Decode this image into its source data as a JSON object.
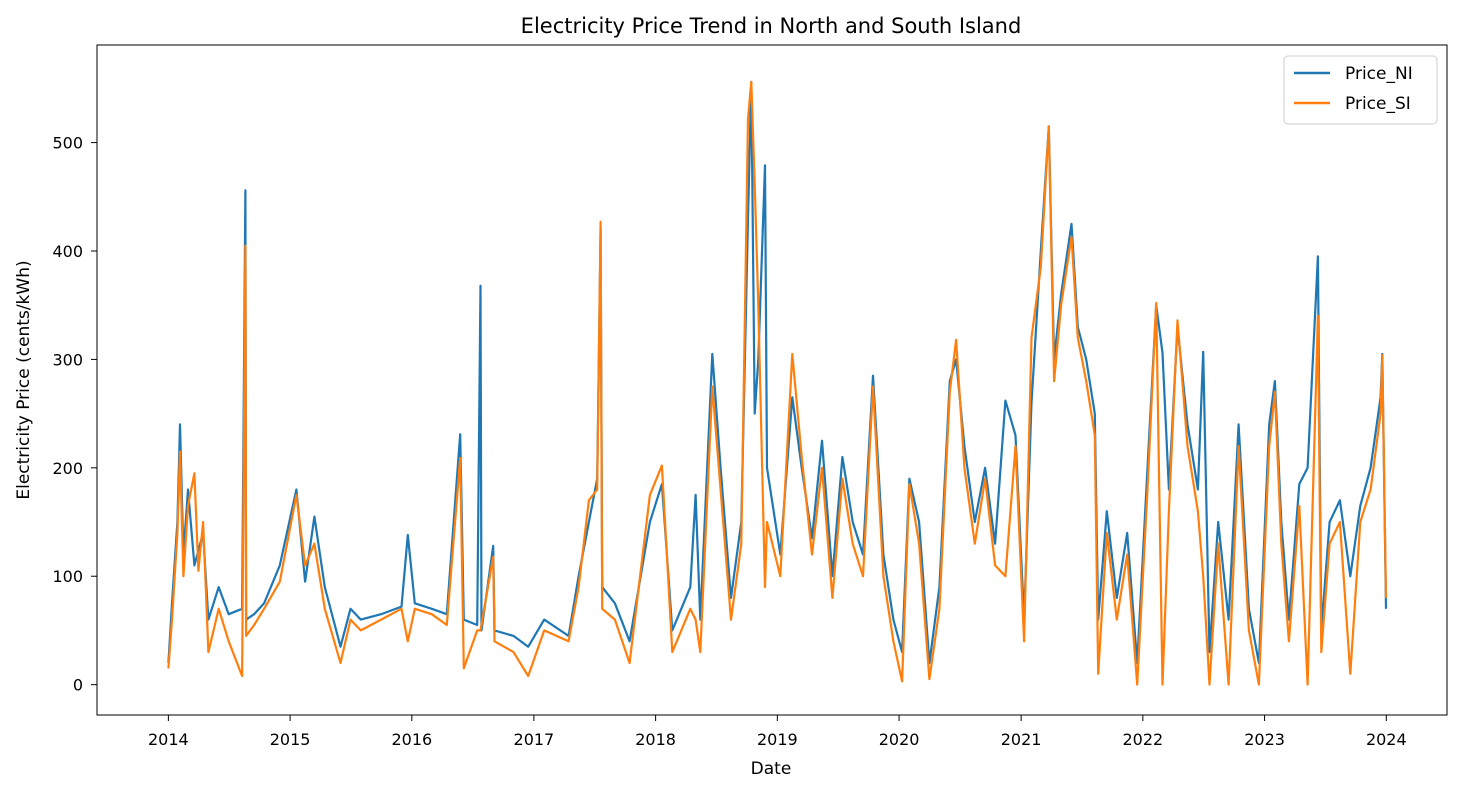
{
  "chart_data": {
    "type": "line",
    "title": "Electricity Price Trend in North and South Island",
    "xlabel": "Date",
    "ylabel": "Electricity Price (cents/kWh)",
    "xlim": [
      "2013-06-01",
      "2024-07-01"
    ],
    "ylim": [
      -28,
      590
    ],
    "x_ticks": [
      "2014",
      "2015",
      "2016",
      "2017",
      "2018",
      "2019",
      "2020",
      "2021",
      "2022",
      "2023",
      "2024"
    ],
    "y_ticks": [
      0,
      100,
      200,
      300,
      400,
      500
    ],
    "legend_position": "top-right",
    "grid": false,
    "series": [
      {
        "name": "Price_NI",
        "color": "#1f77b4",
        "points": [
          [
            "2014-01-01",
            20
          ],
          [
            "2014-01-12",
            75
          ],
          [
            "2014-01-28",
            150
          ],
          [
            "2014-02-05",
            240
          ],
          [
            "2014-02-15",
            120
          ],
          [
            "2014-03-01",
            180
          ],
          [
            "2014-03-20",
            110
          ],
          [
            "2014-04-15",
            140
          ],
          [
            "2014-05-01",
            60
          ],
          [
            "2014-06-01",
            90
          ],
          [
            "2014-07-01",
            65
          ],
          [
            "2014-08-10",
            70
          ],
          [
            "2014-08-20",
            456
          ],
          [
            "2014-08-22",
            60
          ],
          [
            "2014-09-15",
            65
          ],
          [
            "2014-10-15",
            75
          ],
          [
            "2014-12-01",
            110
          ],
          [
            "2015-01-20",
            180
          ],
          [
            "2015-02-15",
            95
          ],
          [
            "2015-03-15",
            155
          ],
          [
            "2015-04-15",
            90
          ],
          [
            "2015-06-01",
            35
          ],
          [
            "2015-07-01",
            70
          ],
          [
            "2015-08-01",
            60
          ],
          [
            "2015-10-01",
            65
          ],
          [
            "2015-12-01",
            72
          ],
          [
            "2015-12-20",
            138
          ],
          [
            "2016-01-10",
            75
          ],
          [
            "2016-03-01",
            70
          ],
          [
            "2016-04-15",
            65
          ],
          [
            "2016-05-25",
            231
          ],
          [
            "2016-06-05",
            60
          ],
          [
            "2016-07-15",
            55
          ],
          [
            "2016-07-25",
            368
          ],
          [
            "2016-07-28",
            50
          ],
          [
            "2016-09-01",
            128
          ],
          [
            "2016-09-05",
            50
          ],
          [
            "2016-11-01",
            45
          ],
          [
            "2016-12-15",
            35
          ],
          [
            "2017-02-01",
            60
          ],
          [
            "2017-04-15",
            45
          ],
          [
            "2017-05-15",
            100
          ],
          [
            "2017-06-15",
            150
          ],
          [
            "2017-07-10",
            190
          ],
          [
            "2017-07-20",
            420
          ],
          [
            "2017-07-25",
            90
          ],
          [
            "2017-09-01",
            75
          ],
          [
            "2017-10-15",
            40
          ],
          [
            "2017-12-15",
            150
          ],
          [
            "2018-01-20",
            185
          ],
          [
            "2018-02-20",
            50
          ],
          [
            "2018-04-15",
            90
          ],
          [
            "2018-05-01",
            175
          ],
          [
            "2018-05-15",
            60
          ],
          [
            "2018-06-20",
            305
          ],
          [
            "2018-07-15",
            200
          ],
          [
            "2018-08-15",
            80
          ],
          [
            "2018-09-15",
            150
          ],
          [
            "2018-10-05",
            430
          ],
          [
            "2018-10-15",
            556
          ],
          [
            "2018-10-25",
            250
          ],
          [
            "2018-11-05",
            300
          ],
          [
            "2018-11-25",
            479
          ],
          [
            "2018-12-01",
            200
          ],
          [
            "2019-01-10",
            120
          ],
          [
            "2019-02-15",
            265
          ],
          [
            "2019-03-15",
            200
          ],
          [
            "2019-04-15",
            135
          ],
          [
            "2019-05-15",
            225
          ],
          [
            "2019-06-15",
            100
          ],
          [
            "2019-07-15",
            210
          ],
          [
            "2019-08-15",
            150
          ],
          [
            "2019-09-15",
            120
          ],
          [
            "2019-10-15",
            285
          ],
          [
            "2019-11-15",
            120
          ],
          [
            "2019-12-15",
            60
          ],
          [
            "2020-01-10",
            30
          ],
          [
            "2020-02-01",
            190
          ],
          [
            "2020-03-01",
            150
          ],
          [
            "2020-04-01",
            20
          ],
          [
            "2020-05-01",
            90
          ],
          [
            "2020-06-01",
            280
          ],
          [
            "2020-06-20",
            300
          ],
          [
            "2020-07-15",
            220
          ],
          [
            "2020-08-15",
            150
          ],
          [
            "2020-09-15",
            200
          ],
          [
            "2020-10-15",
            130
          ],
          [
            "2020-11-15",
            262
          ],
          [
            "2020-12-15",
            230
          ],
          [
            "2021-01-10",
            60
          ],
          [
            "2021-02-01",
            260
          ],
          [
            "2021-03-01",
            400
          ],
          [
            "2021-03-25",
            515
          ],
          [
            "2021-04-10",
            300
          ],
          [
            "2021-05-01",
            360
          ],
          [
            "2021-06-01",
            425
          ],
          [
            "2021-06-20",
            330
          ],
          [
            "2021-07-15",
            300
          ],
          [
            "2021-08-10",
            250
          ],
          [
            "2021-08-20",
            60
          ],
          [
            "2021-09-15",
            160
          ],
          [
            "2021-10-15",
            80
          ],
          [
            "2021-11-15",
            140
          ],
          [
            "2021-12-15",
            20
          ],
          [
            "2022-01-15",
            200
          ],
          [
            "2022-02-10",
            350
          ],
          [
            "2022-03-01",
            306
          ],
          [
            "2022-03-20",
            180
          ],
          [
            "2022-04-15",
            330
          ],
          [
            "2022-05-15",
            240
          ],
          [
            "2022-06-15",
            180
          ],
          [
            "2022-07-01",
            307
          ],
          [
            "2022-07-20",
            30
          ],
          [
            "2022-08-15",
            150
          ],
          [
            "2022-09-15",
            60
          ],
          [
            "2022-10-15",
            240
          ],
          [
            "2022-11-15",
            70
          ],
          [
            "2022-12-15",
            20
          ],
          [
            "2023-01-15",
            240
          ],
          [
            "2023-02-01",
            280
          ],
          [
            "2023-02-20",
            150
          ],
          [
            "2023-03-15",
            60
          ],
          [
            "2023-04-15",
            185
          ],
          [
            "2023-05-10",
            200
          ],
          [
            "2023-06-10",
            395
          ],
          [
            "2023-06-20",
            50
          ],
          [
            "2023-07-15",
            150
          ],
          [
            "2023-08-15",
            170
          ],
          [
            "2023-09-15",
            100
          ],
          [
            "2023-10-15",
            165
          ],
          [
            "2023-11-15",
            200
          ],
          [
            "2023-12-15",
            265
          ],
          [
            "2023-12-20",
            305
          ],
          [
            "2023-12-31",
            70
          ]
        ]
      },
      {
        "name": "Price_SI",
        "color": "#ff7f0e",
        "points": [
          [
            "2014-01-01",
            15
          ],
          [
            "2014-01-12",
            60
          ],
          [
            "2014-01-28",
            140
          ],
          [
            "2014-02-05",
            215
          ],
          [
            "2014-02-15",
            100
          ],
          [
            "2014-03-01",
            165
          ],
          [
            "2014-03-20",
            195
          ],
          [
            "2014-04-01",
            105
          ],
          [
            "2014-04-15",
            150
          ],
          [
            "2014-05-01",
            30
          ],
          [
            "2014-06-01",
            70
          ],
          [
            "2014-07-01",
            40
          ],
          [
            "2014-08-10",
            8
          ],
          [
            "2014-08-20",
            405
          ],
          [
            "2014-08-22",
            45
          ],
          [
            "2014-09-15",
            55
          ],
          [
            "2014-10-15",
            70
          ],
          [
            "2014-12-01",
            95
          ],
          [
            "2015-01-20",
            175
          ],
          [
            "2015-02-15",
            110
          ],
          [
            "2015-03-15",
            130
          ],
          [
            "2015-04-15",
            70
          ],
          [
            "2015-06-01",
            20
          ],
          [
            "2015-07-01",
            60
          ],
          [
            "2015-08-01",
            50
          ],
          [
            "2015-10-01",
            60
          ],
          [
            "2015-12-01",
            70
          ],
          [
            "2015-12-20",
            40
          ],
          [
            "2016-01-10",
            70
          ],
          [
            "2016-03-01",
            65
          ],
          [
            "2016-04-15",
            55
          ],
          [
            "2016-05-25",
            209
          ],
          [
            "2016-06-05",
            15
          ],
          [
            "2016-07-15",
            50
          ],
          [
            "2016-07-25",
            50
          ],
          [
            "2016-09-01",
            118
          ],
          [
            "2016-09-05",
            40
          ],
          [
            "2016-11-01",
            30
          ],
          [
            "2016-12-15",
            8
          ],
          [
            "2017-02-01",
            50
          ],
          [
            "2017-04-15",
            40
          ],
          [
            "2017-05-15",
            90
          ],
          [
            "2017-06-15",
            170
          ],
          [
            "2017-07-10",
            180
          ],
          [
            "2017-07-20",
            427
          ],
          [
            "2017-07-25",
            70
          ],
          [
            "2017-09-01",
            60
          ],
          [
            "2017-10-15",
            20
          ],
          [
            "2017-12-15",
            175
          ],
          [
            "2018-01-20",
            202
          ],
          [
            "2018-02-20",
            30
          ],
          [
            "2018-04-15",
            70
          ],
          [
            "2018-05-01",
            60
          ],
          [
            "2018-05-15",
            30
          ],
          [
            "2018-06-20",
            275
          ],
          [
            "2018-07-15",
            180
          ],
          [
            "2018-08-15",
            60
          ],
          [
            "2018-09-15",
            130
          ],
          [
            "2018-10-05",
            522
          ],
          [
            "2018-10-15",
            556
          ],
          [
            "2018-10-25",
            462
          ],
          [
            "2018-11-05",
            350
          ],
          [
            "2018-11-25",
            90
          ],
          [
            "2018-12-01",
            150
          ],
          [
            "2019-01-10",
            100
          ],
          [
            "2019-02-15",
            305
          ],
          [
            "2019-03-15",
            210
          ],
          [
            "2019-04-15",
            120
          ],
          [
            "2019-05-15",
            200
          ],
          [
            "2019-06-15",
            80
          ],
          [
            "2019-07-15",
            190
          ],
          [
            "2019-08-15",
            130
          ],
          [
            "2019-09-15",
            100
          ],
          [
            "2019-10-15",
            275
          ],
          [
            "2019-11-15",
            100
          ],
          [
            "2019-12-15",
            40
          ],
          [
            "2020-01-10",
            3
          ],
          [
            "2020-02-01",
            185
          ],
          [
            "2020-03-01",
            130
          ],
          [
            "2020-04-01",
            5
          ],
          [
            "2020-05-01",
            70
          ],
          [
            "2020-06-01",
            270
          ],
          [
            "2020-06-20",
            318
          ],
          [
            "2020-07-15",
            200
          ],
          [
            "2020-08-15",
            130
          ],
          [
            "2020-09-15",
            190
          ],
          [
            "2020-10-15",
            110
          ],
          [
            "2020-11-15",
            100
          ],
          [
            "2020-12-15",
            220
          ],
          [
            "2021-01-10",
            40
          ],
          [
            "2021-02-01",
            320
          ],
          [
            "2021-03-01",
            385
          ],
          [
            "2021-03-25",
            515
          ],
          [
            "2021-04-10",
            280
          ],
          [
            "2021-05-01",
            350
          ],
          [
            "2021-06-01",
            413
          ],
          [
            "2021-06-20",
            320
          ],
          [
            "2021-07-15",
            280
          ],
          [
            "2021-08-10",
            230
          ],
          [
            "2021-08-20",
            10
          ],
          [
            "2021-09-15",
            140
          ],
          [
            "2021-10-15",
            60
          ],
          [
            "2021-11-15",
            120
          ],
          [
            "2021-12-15",
            0
          ],
          [
            "2022-01-15",
            180
          ],
          [
            "2022-02-10",
            352
          ],
          [
            "2022-03-01",
            0
          ],
          [
            "2022-03-20",
            160
          ],
          [
            "2022-04-15",
            336
          ],
          [
            "2022-05-15",
            220
          ],
          [
            "2022-06-15",
            160
          ],
          [
            "2022-07-01",
            100
          ],
          [
            "2022-07-20",
            0
          ],
          [
            "2022-08-15",
            130
          ],
          [
            "2022-09-15",
            0
          ],
          [
            "2022-10-15",
            220
          ],
          [
            "2022-11-15",
            50
          ],
          [
            "2022-12-15",
            0
          ],
          [
            "2023-01-15",
            220
          ],
          [
            "2023-02-01",
            270
          ],
          [
            "2023-02-20",
            130
          ],
          [
            "2023-03-15",
            40
          ],
          [
            "2023-04-15",
            165
          ],
          [
            "2023-05-10",
            0
          ],
          [
            "2023-06-10",
            340
          ],
          [
            "2023-06-20",
            30
          ],
          [
            "2023-07-15",
            130
          ],
          [
            "2023-08-15",
            150
          ],
          [
            "2023-09-15",
            10
          ],
          [
            "2023-10-15",
            150
          ],
          [
            "2023-11-15",
            180
          ],
          [
            "2023-12-15",
            250
          ],
          [
            "2023-12-20",
            304
          ],
          [
            "2023-12-31",
            80
          ]
        ]
      }
    ]
  }
}
